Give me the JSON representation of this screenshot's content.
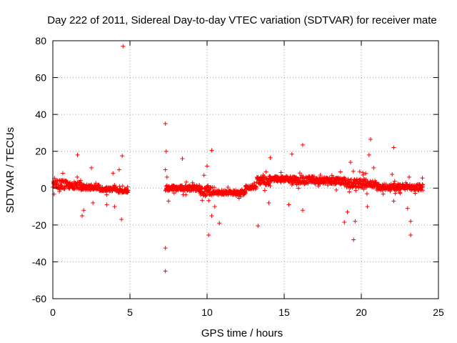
{
  "chart_data": {
    "type": "scatter",
    "title": "Day 222 of 2011, Sidereal Day-to-day VTEC variation (SDTVAR) for receiver mate",
    "xlabel": "GPS time / hours",
    "ylabel": "SDTVAR / TECUs",
    "xlim": [
      0,
      25
    ],
    "ylim": [
      -60,
      80
    ],
    "xticks": [
      0,
      5,
      10,
      15,
      20,
      25
    ],
    "yticks": [
      -60,
      -40,
      -20,
      0,
      20,
      40,
      60,
      80
    ],
    "xtick_labels": [
      "0",
      "5",
      "10",
      "15",
      "20",
      "25"
    ],
    "ytick_labels": [
      "-60",
      "-40",
      "-20",
      "0",
      "20",
      "40",
      "60",
      "80"
    ],
    "grid": true,
    "marker": "+",
    "color": "#ff0000",
    "dense_band": [
      {
        "x0": 0.0,
        "x1": 0.9,
        "y_center": 2.0,
        "half_width": 2.5
      },
      {
        "x0": 0.9,
        "x1": 1.8,
        "y_center": 1.5,
        "half_width": 2.0
      },
      {
        "x0": 1.8,
        "x1": 3.0,
        "y_center": 0.5,
        "half_width": 1.5
      },
      {
        "x0": 3.0,
        "x1": 4.2,
        "y_center": -0.5,
        "half_width": 1.2
      },
      {
        "x0": 4.2,
        "x1": 4.9,
        "y_center": -1.5,
        "half_width": 1.0
      },
      {
        "x0": 7.3,
        "x1": 9.5,
        "y_center": 0.0,
        "half_width": 1.5
      },
      {
        "x0": 9.5,
        "x1": 10.5,
        "y_center": -1.5,
        "half_width": 2.5
      },
      {
        "x0": 10.5,
        "x1": 12.5,
        "y_center": -2.5,
        "half_width": 1.2
      },
      {
        "x0": 12.5,
        "x1": 13.2,
        "y_center": 0.5,
        "half_width": 1.2
      },
      {
        "x0": 13.2,
        "x1": 14.0,
        "y_center": 4.0,
        "half_width": 2.5
      },
      {
        "x0": 14.0,
        "x1": 15.5,
        "y_center": 5.0,
        "half_width": 1.5
      },
      {
        "x0": 15.5,
        "x1": 17.0,
        "y_center": 4.5,
        "half_width": 2.0
      },
      {
        "x0": 17.0,
        "x1": 19.0,
        "y_center": 4.0,
        "half_width": 1.8
      },
      {
        "x0": 19.0,
        "x1": 21.0,
        "y_center": 2.5,
        "half_width": 2.5
      },
      {
        "x0": 21.0,
        "x1": 24.0,
        "y_center": 0.5,
        "half_width": 1.8
      }
    ],
    "outliers": [
      {
        "x": 4.55,
        "y": 77
      },
      {
        "x": 4.5,
        "y": 17.5
      },
      {
        "x": 4.45,
        "y": -17
      },
      {
        "x": 4.3,
        "y": 10
      },
      {
        "x": 1.6,
        "y": 18
      },
      {
        "x": 1.9,
        "y": -15
      },
      {
        "x": 2.0,
        "y": -12
      },
      {
        "x": 2.5,
        "y": 11
      },
      {
        "x": 2.6,
        "y": -8
      },
      {
        "x": 3.5,
        "y": -9
      },
      {
        "x": 3.9,
        "y": 8
      },
      {
        "x": 4.0,
        "y": -10
      },
      {
        "x": 7.3,
        "y": 35
      },
      {
        "x": 7.35,
        "y": 20
      },
      {
        "x": 7.3,
        "y": 10
      },
      {
        "x": 7.4,
        "y": 6
      },
      {
        "x": 7.3,
        "y": -32.5
      },
      {
        "x": 7.3,
        "y": -45
      },
      {
        "x": 7.5,
        "y": -7
      },
      {
        "x": 8.4,
        "y": 16
      },
      {
        "x": 10.3,
        "y": 20.5
      },
      {
        "x": 10.0,
        "y": 12
      },
      {
        "x": 10.1,
        "y": -25.5
      },
      {
        "x": 10.3,
        "y": -15
      },
      {
        "x": 10.8,
        "y": -19
      },
      {
        "x": 9.8,
        "y": 7
      },
      {
        "x": 10.5,
        "y": -10
      },
      {
        "x": 13.3,
        "y": -20.5
      },
      {
        "x": 14.1,
        "y": 16.5
      },
      {
        "x": 14.0,
        "y": -8
      },
      {
        "x": 15.3,
        "y": -9
      },
      {
        "x": 15.5,
        "y": 18.5
      },
      {
        "x": 16.2,
        "y": 23.5
      },
      {
        "x": 16.2,
        "y": -12
      },
      {
        "x": 18.9,
        "y": -18.5
      },
      {
        "x": 19.1,
        "y": -13
      },
      {
        "x": 19.5,
        "y": -28
      },
      {
        "x": 19.6,
        "y": -18
      },
      {
        "x": 19.3,
        "y": 14
      },
      {
        "x": 19.9,
        "y": 9
      },
      {
        "x": 20.5,
        "y": 18
      },
      {
        "x": 20.6,
        "y": 26.5
      },
      {
        "x": 20.4,
        "y": -10
      },
      {
        "x": 20.8,
        "y": 11
      },
      {
        "x": 22.1,
        "y": 22
      },
      {
        "x": 22.0,
        "y": 7.5
      },
      {
        "x": 22.1,
        "y": -7
      },
      {
        "x": 23.2,
        "y": -18
      },
      {
        "x": 23.2,
        "y": -25.5
      },
      {
        "x": 23.1,
        "y": 6
      },
      {
        "x": 23.0,
        "y": -11
      }
    ]
  }
}
